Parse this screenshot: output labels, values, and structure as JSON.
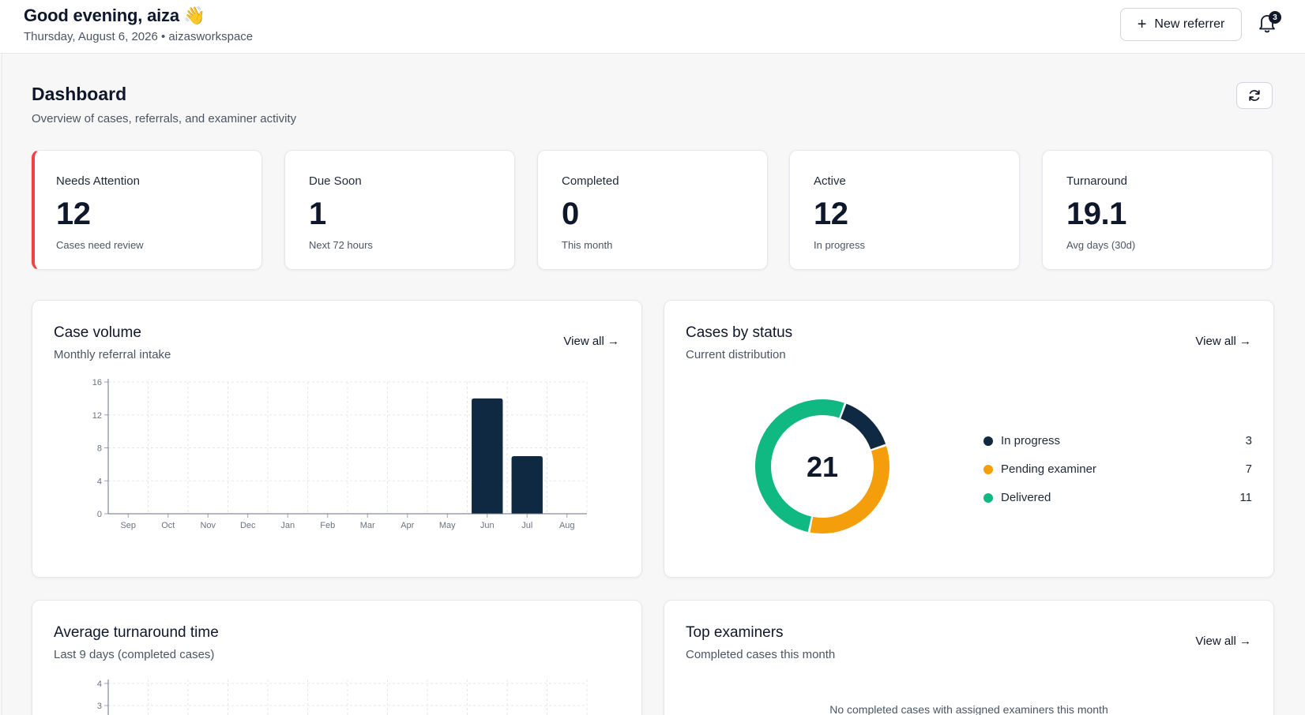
{
  "header": {
    "greeting": "Good evening, aiza",
    "wave_icon": "👋",
    "subline": "Thursday, August 6, 2026 • aizasworkspace",
    "new_referrer_label": "New referrer",
    "notifications_count": "3"
  },
  "page": {
    "title": "Dashboard",
    "subtitle": "Overview of cases, referrals, and examiner activity"
  },
  "stats": [
    {
      "label": "Needs Attention",
      "value": "12",
      "note": "Cases need review"
    },
    {
      "label": "Due Soon",
      "value": "1",
      "note": "Next 72 hours"
    },
    {
      "label": "Completed",
      "value": "0",
      "note": "This month"
    },
    {
      "label": "Active",
      "value": "12",
      "note": "In progress"
    },
    {
      "label": "Turnaround",
      "value": "19.1",
      "note": "Avg days (30d)"
    }
  ],
  "case_volume": {
    "title": "Case volume",
    "subtitle": "Monthly referral intake",
    "view_all": "View all →"
  },
  "cases_by_status": {
    "title": "Cases by status",
    "subtitle": "Current distribution",
    "view_all": "View all →",
    "total": "21",
    "legend": [
      {
        "name": "In progress",
        "value": "3"
      },
      {
        "name": "Pending examiner",
        "value": "7"
      },
      {
        "name": "Delivered",
        "value": "11"
      }
    ]
  },
  "turnaround": {
    "title": "Average turnaround time",
    "subtitle": "Last 9 days (completed cases)"
  },
  "top_examiners": {
    "title": "Top examiners",
    "subtitle": "Completed cases this month",
    "view_all": "View all →",
    "empty_message": "No completed cases with assigned examiners this month"
  },
  "colors": {
    "navy": "#0f2942",
    "amber": "#f59e0b",
    "green": "#10b981",
    "alert": "#ef4444"
  },
  "chart_data": [
    {
      "type": "bar",
      "categories": [
        "Sep",
        "Oct",
        "Nov",
        "Dec",
        "Jan",
        "Feb",
        "Mar",
        "Apr",
        "May",
        "Jun",
        "Jul",
        "Aug"
      ],
      "values": [
        0,
        0,
        0,
        0,
        0,
        0,
        0,
        0,
        0,
        14,
        7,
        0
      ],
      "yticks": [
        "0",
        "4",
        "8",
        "12",
        "16"
      ],
      "ylim": [
        0,
        16
      ],
      "grid": true
    },
    {
      "type": "pie",
      "categories": [
        "In progress",
        "Pending examiner",
        "Delivered"
      ],
      "values": [
        3,
        7,
        11
      ],
      "colors": [
        "#0f2942",
        "#f59e0b",
        "#10b981"
      ]
    },
    {
      "type": "line",
      "yticks": [
        "4",
        "3"
      ],
      "grid": true
    }
  ]
}
